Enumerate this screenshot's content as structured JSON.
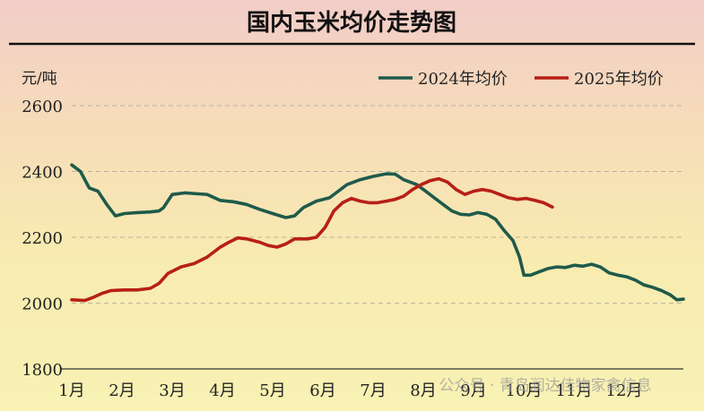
{
  "chart_data": {
    "type": "line",
    "title": "国内玉米均价走势图",
    "ylabel": "元/吨",
    "ylim": [
      1800,
      2600
    ],
    "yticks": [
      "2600",
      "2400",
      "2200",
      "2000",
      "1800"
    ],
    "categories": [
      "1月",
      "2月",
      "3月",
      "4月",
      "5月",
      "6月",
      "7月",
      "8月",
      "9月",
      "10月",
      "11月",
      "12月"
    ],
    "grid": "horizontal-dashed",
    "legend_position": "top-right",
    "series": [
      {
        "name": "2024年均价",
        "color": "#1f5a4a",
        "points": [
          [
            0.0,
            2420
          ],
          [
            0.2,
            2400
          ],
          [
            0.4,
            2350
          ],
          [
            0.6,
            2340
          ],
          [
            0.8,
            2300
          ],
          [
            1.0,
            2265
          ],
          [
            1.2,
            2272
          ],
          [
            1.5,
            2275
          ],
          [
            1.8,
            2277
          ],
          [
            2.0,
            2280
          ],
          [
            2.1,
            2290
          ],
          [
            2.3,
            2330
          ],
          [
            2.6,
            2335
          ],
          [
            2.9,
            2332
          ],
          [
            3.1,
            2330
          ],
          [
            3.4,
            2312
          ],
          [
            3.7,
            2308
          ],
          [
            4.0,
            2300
          ],
          [
            4.3,
            2285
          ],
          [
            4.6,
            2272
          ],
          [
            4.9,
            2260
          ],
          [
            5.1,
            2265
          ],
          [
            5.3,
            2290
          ],
          [
            5.6,
            2310
          ],
          [
            5.9,
            2320
          ],
          [
            6.1,
            2340
          ],
          [
            6.3,
            2360
          ],
          [
            6.6,
            2375
          ],
          [
            6.9,
            2385
          ],
          [
            7.2,
            2393
          ],
          [
            7.4,
            2392
          ],
          [
            7.6,
            2375
          ],
          [
            7.9,
            2360
          ],
          [
            8.1,
            2340
          ],
          [
            8.3,
            2320
          ],
          [
            8.5,
            2300
          ],
          [
            8.7,
            2280
          ],
          [
            8.9,
            2270
          ],
          [
            9.1,
            2268
          ],
          [
            9.3,
            2275
          ],
          [
            9.5,
            2270
          ],
          [
            9.7,
            2255
          ],
          [
            9.9,
            2220
          ],
          [
            10.1,
            2190
          ],
          [
            10.25,
            2140
          ],
          [
            10.35,
            2085
          ],
          [
            10.5,
            2085
          ],
          [
            10.7,
            2095
          ],
          [
            10.9,
            2105
          ],
          [
            11.1,
            2110
          ],
          [
            11.3,
            2108
          ],
          [
            11.5,
            2115
          ],
          [
            11.7,
            2112
          ],
          [
            11.9,
            2118
          ],
          [
            12.1,
            2110
          ],
          [
            12.3,
            2092
          ],
          [
            12.5,
            2085
          ],
          [
            12.7,
            2080
          ],
          [
            12.9,
            2070
          ],
          [
            13.1,
            2055
          ],
          [
            13.3,
            2048
          ],
          [
            13.5,
            2038
          ],
          [
            13.7,
            2025
          ],
          [
            13.85,
            2010
          ],
          [
            14.0,
            2012
          ]
        ]
      },
      {
        "name": "2025年均价",
        "color": "#b81f16",
        "points": [
          [
            0.0,
            2010
          ],
          [
            0.3,
            2008
          ],
          [
            0.5,
            2018
          ],
          [
            0.7,
            2030
          ],
          [
            0.9,
            2038
          ],
          [
            1.2,
            2040
          ],
          [
            1.5,
            2040
          ],
          [
            1.8,
            2045
          ],
          [
            2.0,
            2060
          ],
          [
            2.2,
            2090
          ],
          [
            2.5,
            2110
          ],
          [
            2.8,
            2120
          ],
          [
            3.1,
            2140
          ],
          [
            3.4,
            2170
          ],
          [
            3.6,
            2185
          ],
          [
            3.8,
            2198
          ],
          [
            4.0,
            2195
          ],
          [
            4.3,
            2185
          ],
          [
            4.5,
            2175
          ],
          [
            4.7,
            2170
          ],
          [
            4.9,
            2180
          ],
          [
            5.1,
            2195
          ],
          [
            5.4,
            2195
          ],
          [
            5.6,
            2200
          ],
          [
            5.8,
            2230
          ],
          [
            6.0,
            2280
          ],
          [
            6.2,
            2305
          ],
          [
            6.4,
            2318
          ],
          [
            6.6,
            2310
          ],
          [
            6.8,
            2305
          ],
          [
            7.0,
            2305
          ],
          [
            7.2,
            2310
          ],
          [
            7.4,
            2315
          ],
          [
            7.6,
            2325
          ],
          [
            7.8,
            2345
          ],
          [
            8.0,
            2360
          ],
          [
            8.2,
            2372
          ],
          [
            8.4,
            2378
          ],
          [
            8.6,
            2368
          ],
          [
            8.8,
            2345
          ],
          [
            9.0,
            2330
          ],
          [
            9.2,
            2340
          ],
          [
            9.4,
            2345
          ],
          [
            9.6,
            2340
          ],
          [
            9.8,
            2330
          ],
          [
            10.0,
            2320
          ],
          [
            10.2,
            2315
          ],
          [
            10.4,
            2318
          ],
          [
            10.6,
            2312
          ],
          [
            10.8,
            2305
          ],
          [
            11.0,
            2292
          ]
        ]
      }
    ]
  },
  "watermark": {
    "text": "公众号 · 青岛润达佳物家禽信息"
  }
}
